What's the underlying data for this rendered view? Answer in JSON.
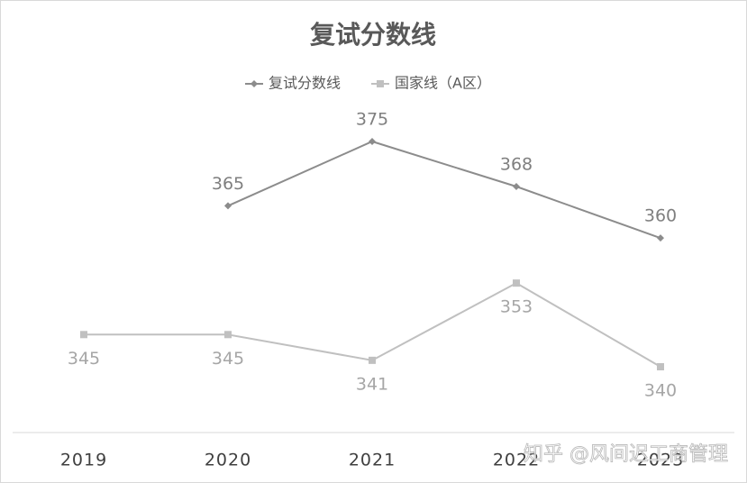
{
  "chart_data": {
    "type": "line",
    "title": "复试分数线",
    "categories": [
      "2019",
      "2020",
      "2021",
      "2022",
      "2023"
    ],
    "series": [
      {
        "name": "复试分数线",
        "color": "#8c8c8c",
        "marker": "diamond",
        "values": [
          null,
          365,
          375,
          368,
          360
        ]
      },
      {
        "name": "国家线（A区）",
        "color": "#c0c0c0",
        "marker": "square",
        "values": [
          345,
          345,
          341,
          353,
          340
        ]
      }
    ],
    "legend": "top",
    "watermark": "知乎 @风间迟工商管理"
  }
}
